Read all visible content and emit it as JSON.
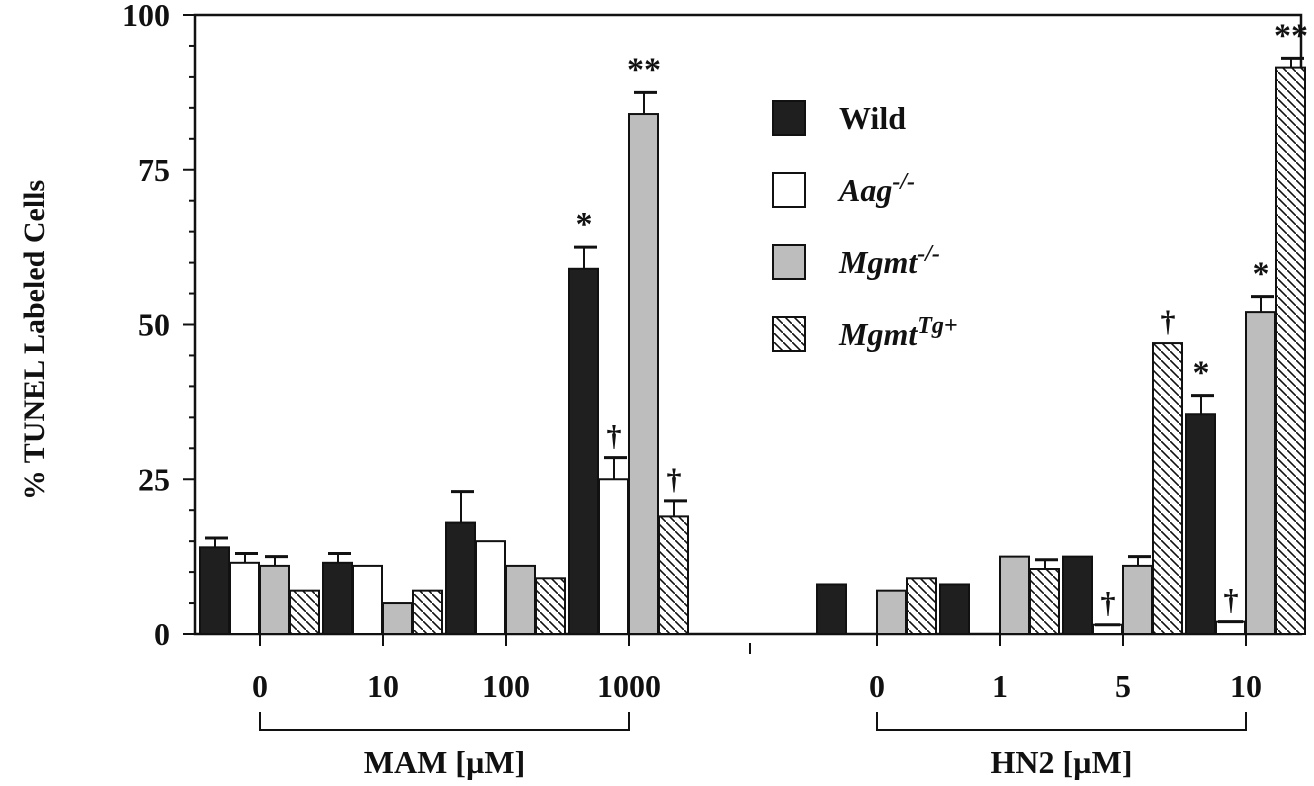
{
  "chart_data": {
    "type": "bar",
    "ylabel": "% TUNEL Labeled Cells",
    "ylim": [
      0,
      100
    ],
    "yticks": [
      "0",
      "25",
      "50",
      "75",
      "100"
    ],
    "legend_position": "top-right",
    "colors": {
      "Wild": "#1f1f1f",
      "Aag": "#ffffff",
      "Mgmt": "#bdbdbd",
      "MgmtTg": "hatched"
    },
    "series": [
      {
        "name": "Wild",
        "sup": ""
      },
      {
        "name": "Aag",
        "sup": "-/-"
      },
      {
        "name": "Mgmt",
        "sup": "-/-"
      },
      {
        "name": "Mgmt",
        "sup": "Tg+"
      }
    ],
    "groups": [
      {
        "label": "MAM [µM]",
        "doses": [
          {
            "dose": "0",
            "values": [
              14,
              11.5,
              11,
              7
            ],
            "errors": [
              1.5,
              1.5,
              1.5,
              0
            ],
            "marks": [
              "",
              "",
              "",
              ""
            ]
          },
          {
            "dose": "10",
            "values": [
              11.5,
              11,
              5,
              7
            ],
            "errors": [
              1.5,
              0,
              0,
              0
            ],
            "marks": [
              "",
              "",
              "",
              ""
            ]
          },
          {
            "dose": "100",
            "values": [
              18,
              15,
              11,
              9
            ],
            "errors": [
              5,
              0,
              0,
              0
            ],
            "marks": [
              "",
              "",
              "",
              ""
            ]
          },
          {
            "dose": "1000",
            "values": [
              59,
              25,
              84,
              19
            ],
            "errors": [
              3.5,
              3.5,
              3.5,
              2.5
            ],
            "marks": [
              "*",
              "†",
              "**",
              "†"
            ]
          }
        ]
      },
      {
        "label": "HN2 [µM]",
        "doses": [
          {
            "dose": "0",
            "values": [
              8,
              0,
              7,
              9
            ],
            "errors": [
              0,
              0,
              0,
              0
            ],
            "marks": [
              "",
              "",
              "",
              ""
            ]
          },
          {
            "dose": "1",
            "values": [
              8,
              0,
              12.5,
              10.5
            ],
            "errors": [
              0,
              0,
              0,
              1.5
            ],
            "marks": [
              "",
              "",
              "",
              ""
            ]
          },
          {
            "dose": "5",
            "values": [
              12.5,
              1.5,
              11,
              47
            ],
            "errors": [
              0,
              0,
              1.5,
              0
            ],
            "marks": [
              "",
              "†",
              "",
              "†"
            ]
          },
          {
            "dose": "10",
            "values": [
              35.5,
              2,
              52,
              91.5
            ],
            "errors": [
              3,
              0,
              2.5,
              1.5
            ],
            "marks": [
              "*",
              "†",
              "*",
              "**"
            ]
          }
        ]
      }
    ]
  }
}
